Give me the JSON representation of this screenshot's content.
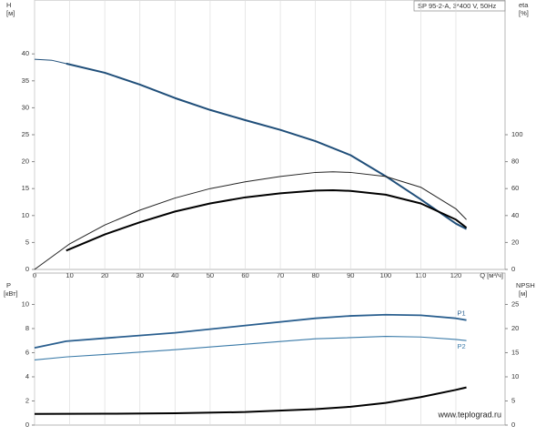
{
  "chart_data": [
    {
      "type": "line",
      "legend_text": "SP 95-2-A, 3*400 V, 50Hz",
      "y_label": "H",
      "y_unit": "[м]",
      "y2_label": "eta",
      "y2_unit": "[%]",
      "x_label": "Q [м³/ч]",
      "xlim": [
        0,
        134
      ],
      "xticks": [
        0,
        10,
        20,
        30,
        40,
        50,
        60,
        70,
        80,
        90,
        100,
        110,
        120
      ],
      "ylim": [
        0,
        50
      ],
      "yticks": [
        0,
        5,
        10,
        15,
        20,
        25,
        30,
        35,
        40
      ],
      "y2lim": [
        0,
        200
      ],
      "y2ticks": [
        0,
        20,
        40,
        60,
        80,
        100
      ],
      "grid": "x",
      "series": [
        {
          "color": "#1f4e79",
          "line_width": 1,
          "x": [
            0,
            5,
            9
          ],
          "values": [
            39,
            38.8,
            38.2
          ]
        },
        {
          "color": "#1f4e79",
          "line_width": 2,
          "x": [
            9,
            20,
            30,
            40,
            50,
            60,
            70,
            80,
            90,
            100,
            110,
            120,
            123
          ],
          "values": [
            38.2,
            36.5,
            34.3,
            31.8,
            29.6,
            27.7,
            25.9,
            23.8,
            21.2,
            17.3,
            13,
            8.5,
            7.5
          ]
        },
        {
          "axis": "y2",
          "color": "#222222",
          "line_width": 1,
          "x": [
            0,
            10,
            20,
            30,
            40,
            50,
            60,
            70,
            80,
            85,
            90,
            100,
            110,
            120,
            123
          ],
          "values": [
            0,
            19,
            33,
            44,
            53,
            60,
            65,
            69,
            72,
            72.5,
            72,
            69,
            61,
            45,
            37
          ]
        },
        {
          "axis": "y2",
          "color": "#000000",
          "line_width": 2,
          "x": [
            9,
            20,
            30,
            40,
            50,
            60,
            70,
            80,
            85,
            90,
            100,
            110,
            120,
            123
          ],
          "values": [
            14,
            26,
            35,
            43,
            49,
            53.5,
            56.5,
            58.5,
            58.8,
            58.3,
            55.5,
            49,
            37,
            31
          ]
        }
      ]
    },
    {
      "type": "line",
      "y_label": "P",
      "y_unit": "[кВт]",
      "y2_label": "NPSH",
      "y2_unit": "[м]",
      "watermark": "www.teplograd.ru",
      "xlim": [
        0,
        134
      ],
      "ylim": [
        0,
        12.6
      ],
      "yticks": [
        0,
        2,
        4,
        6,
        8,
        10
      ],
      "y2lim": [
        0,
        31.5
      ],
      "y2ticks": [
        0,
        5,
        10,
        15,
        20,
        25
      ],
      "grid": "x",
      "series": [
        {
          "name": "P1",
          "color": "#2a5f8f",
          "line_width": 1.8,
          "x": [
            0,
            9,
            20,
            40,
            60,
            80,
            90,
            100,
            110,
            120,
            123
          ],
          "values": [
            6.4,
            6.95,
            7.2,
            7.65,
            8.25,
            8.85,
            9.05,
            9.15,
            9.1,
            8.85,
            8.7
          ]
        },
        {
          "name": "P2",
          "color": "#3a7aa8",
          "line_width": 1.1,
          "x": [
            0,
            9,
            20,
            40,
            60,
            80,
            100,
            110,
            120,
            123
          ],
          "values": [
            5.4,
            5.65,
            5.85,
            6.25,
            6.7,
            7.15,
            7.35,
            7.3,
            7.1,
            7.0
          ]
        },
        {
          "axis": "y2",
          "color": "#000000",
          "line_width": 2,
          "x": [
            0,
            20,
            40,
            60,
            80,
            90,
            100,
            110,
            120,
            123
          ],
          "values": [
            2.3,
            2.35,
            2.45,
            2.7,
            3.3,
            3.8,
            4.6,
            5.8,
            7.3,
            7.8
          ]
        }
      ]
    }
  ]
}
